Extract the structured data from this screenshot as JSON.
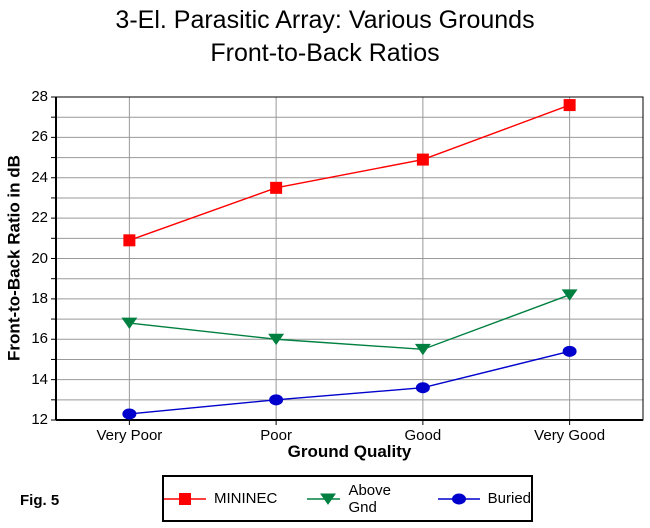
{
  "title_line1": "3-El. Parasitic Array: Various Grounds",
  "title_line2": "Front-to-Back Ratios",
  "fig_label": "Fig. 5",
  "chart_data": {
    "type": "line",
    "title": "3-El. Parasitic Array: Various Grounds Front-to-Back Ratios",
    "xlabel": "Ground Quality",
    "ylabel": "Front-to-Back Ratio in dB",
    "categories": [
      "Very Poor",
      "Poor",
      "Good",
      "Very Good"
    ],
    "series": [
      {
        "name": "MININEC",
        "marker": "square",
        "color": "#FF0000",
        "values": [
          20.9,
          23.5,
          24.9,
          27.6
        ]
      },
      {
        "name": "Above Gnd",
        "marker": "triangle-down",
        "color": "#008040",
        "values": [
          16.8,
          16.0,
          15.5,
          18.2
        ]
      },
      {
        "name": "Buried",
        "marker": "circle",
        "color": "#0000CC",
        "values": [
          12.3,
          13.0,
          13.6,
          15.4
        ]
      }
    ],
    "ylim": [
      12,
      28
    ],
    "ytick_step": 2,
    "yticks": [
      12,
      14,
      16,
      18,
      20,
      22,
      24,
      26,
      28
    ],
    "grid_step": 1,
    "grid": true,
    "gridline_color": "#999999",
    "axis_color": "#000000",
    "legend_position": "bottom"
  }
}
